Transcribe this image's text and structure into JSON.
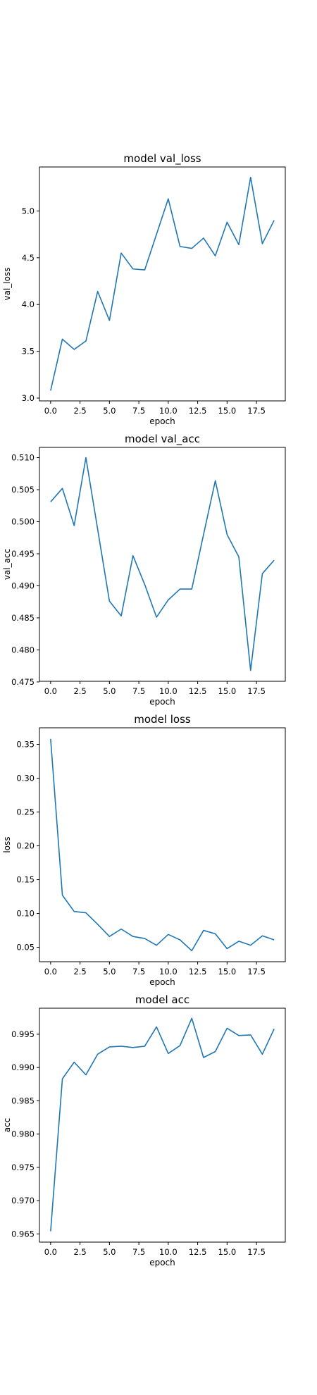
{
  "figure": {
    "background": "#ffffff",
    "line_color": "#1f77b4"
  },
  "chart_data": [
    {
      "type": "line",
      "title": "model val_loss",
      "xlabel": "epoch",
      "ylabel": "val_loss",
      "xlim": [
        -0.95,
        19.95
      ],
      "ylim": [
        2.97,
        5.47
      ],
      "xticks": [
        0.0,
        2.5,
        5.0,
        7.5,
        10.0,
        12.5,
        15.0,
        17.5
      ],
      "xticklabels": [
        "0.0",
        "2.5",
        "5.0",
        "7.5",
        "10.0",
        "12.5",
        "15.0",
        "17.5"
      ],
      "yticks": [
        3.0,
        3.5,
        4.0,
        4.5,
        5.0
      ],
      "yticklabels": [
        "3.0",
        "3.5",
        "4.0",
        "4.5",
        "5.0"
      ],
      "grid": false,
      "series": [
        {
          "x": [
            0,
            1,
            2,
            3,
            4,
            5,
            6,
            7,
            8,
            9,
            10,
            11,
            12,
            13,
            14,
            15,
            16,
            17,
            18,
            19
          ],
          "y": [
            3.08,
            3.63,
            3.52,
            3.61,
            4.14,
            3.83,
            4.55,
            4.38,
            4.37,
            4.75,
            5.13,
            4.62,
            4.6,
            4.71,
            4.52,
            4.88,
            4.64,
            5.36,
            4.65,
            4.9
          ]
        }
      ]
    },
    {
      "type": "line",
      "title": "model val_acc",
      "xlabel": "epoch",
      "ylabel": "val_acc",
      "xlim": [
        -0.95,
        19.95
      ],
      "ylim": [
        0.4751,
        0.5116
      ],
      "xticks": [
        0.0,
        2.5,
        5.0,
        7.5,
        10.0,
        12.5,
        15.0,
        17.5
      ],
      "xticklabels": [
        "0.0",
        "2.5",
        "5.0",
        "7.5",
        "10.0",
        "12.5",
        "15.0",
        "17.5"
      ],
      "yticks": [
        0.475,
        0.48,
        0.485,
        0.49,
        0.495,
        0.5,
        0.505,
        0.51
      ],
      "yticklabels": [
        "0.475",
        "0.480",
        "0.485",
        "0.490",
        "0.495",
        "0.500",
        "0.505",
        "0.510"
      ],
      "grid": false,
      "series": [
        {
          "x": [
            0,
            1,
            2,
            3,
            4,
            5,
            6,
            7,
            8,
            9,
            10,
            11,
            12,
            13,
            14,
            15,
            16,
            17,
            18,
            19
          ],
          "y": [
            0.5031,
            0.5052,
            0.4994,
            0.51,
            0.4988,
            0.4876,
            0.4853,
            0.4947,
            0.4902,
            0.4851,
            0.4878,
            0.4895,
            0.4895,
            0.498,
            0.5064,
            0.498,
            0.4945,
            0.4768,
            0.4919,
            0.494
          ]
        }
      ]
    },
    {
      "type": "line",
      "title": "model loss",
      "xlabel": "epoch",
      "ylabel": "loss",
      "xlim": [
        -0.95,
        19.95
      ],
      "ylim": [
        0.0287,
        0.3745
      ],
      "xticks": [
        0.0,
        2.5,
        5.0,
        7.5,
        10.0,
        12.5,
        15.0,
        17.5
      ],
      "xticklabels": [
        "0.0",
        "2.5",
        "5.0",
        "7.5",
        "10.0",
        "12.5",
        "15.0",
        "17.5"
      ],
      "yticks": [
        0.05,
        0.1,
        0.15,
        0.2,
        0.25,
        0.3,
        0.35
      ],
      "yticklabels": [
        "0.05",
        "0.10",
        "0.15",
        "0.20",
        "0.25",
        "0.30",
        "0.35"
      ],
      "grid": false,
      "series": [
        {
          "x": [
            0,
            1,
            2,
            3,
            4,
            5,
            6,
            7,
            8,
            9,
            10,
            11,
            12,
            13,
            14,
            15,
            16,
            17,
            18,
            19
          ],
          "y": [
            0.358,
            0.127,
            0.103,
            0.101,
            0.084,
            0.066,
            0.077,
            0.066,
            0.063,
            0.053,
            0.069,
            0.061,
            0.045,
            0.075,
            0.07,
            0.048,
            0.059,
            0.053,
            0.067,
            0.061
          ]
        }
      ]
    },
    {
      "type": "line",
      "title": "model acc",
      "xlabel": "epoch",
      "ylabel": "acc",
      "xlim": [
        -0.95,
        19.95
      ],
      "ylim": [
        0.96377,
        0.99891
      ],
      "xticks": [
        0.0,
        2.5,
        5.0,
        7.5,
        10.0,
        12.5,
        15.0,
        17.5
      ],
      "xticklabels": [
        "0.0",
        "2.5",
        "5.0",
        "7.5",
        "10.0",
        "12.5",
        "15.0",
        "17.5"
      ],
      "yticks": [
        0.965,
        0.97,
        0.975,
        0.98,
        0.985,
        0.99,
        0.995
      ],
      "yticklabels": [
        "0.965",
        "0.970",
        "0.975",
        "0.980",
        "0.985",
        "0.990",
        "0.995"
      ],
      "grid": false,
      "series": [
        {
          "x": [
            0,
            1,
            2,
            3,
            4,
            5,
            6,
            7,
            8,
            9,
            10,
            11,
            12,
            13,
            14,
            15,
            16,
            17,
            18,
            19
          ],
          "y": [
            0.9654,
            0.9883,
            0.9908,
            0.9889,
            0.992,
            0.9931,
            0.9932,
            0.993,
            0.9932,
            0.9961,
            0.9921,
            0.9933,
            0.9974,
            0.9915,
            0.9924,
            0.9959,
            0.9948,
            0.9949,
            0.992,
            0.9958
          ]
        }
      ]
    }
  ]
}
